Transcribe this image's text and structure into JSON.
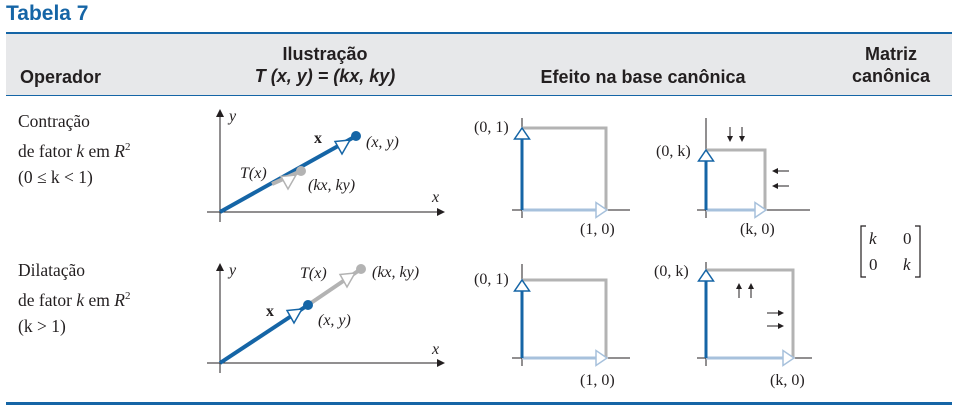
{
  "title": "Tabela 7",
  "header": {
    "operator": "Operador",
    "illustration_line1": "Ilustração",
    "illustration_line2": "T (x, y) = (kx, ky)",
    "effect": "Efeito na base canônica",
    "matrix_line1": "Matriz",
    "matrix_line2": "canônica"
  },
  "rows": [
    {
      "name": "Contração",
      "line2": {
        "pre": "de fator ",
        "k": "k",
        "mid": " em ",
        "R": "R",
        "sup": "2"
      },
      "condition": "(0 ≤ k < 1)",
      "illus": {
        "axis_y": "y",
        "axis_x": "x",
        "vec_label": "x",
        "point_label": "(x, y)",
        "image_label": "T(x)",
        "image_point_label": "(kx, ky)"
      },
      "basis_left": {
        "e2": "(0, 1)",
        "e1": "(1, 0)"
      },
      "basis_right": {
        "e2": "(0, k)",
        "e1": "(k, 0)"
      }
    },
    {
      "name": "Dilatação",
      "line2": {
        "pre": "de fator ",
        "k": "k",
        "mid": " em ",
        "R": "R",
        "sup": "2"
      },
      "condition": "(k > 1)",
      "illus": {
        "axis_y": "y",
        "axis_x": "x",
        "vec_label": "x",
        "point_label": "(x, y)",
        "image_label": "T(x)",
        "image_point_label": "(kx, ky)"
      },
      "basis_left": {
        "e2": "(0, 1)",
        "e1": "(1, 0)"
      },
      "basis_right": {
        "e2": "(0, k)",
        "e1": "(k, 0)"
      }
    }
  ],
  "matrix": {
    "a11": "k",
    "a12": "0",
    "a21": "0",
    "a22": "k"
  },
  "colors": {
    "accent": "#1565a6",
    "grey": "#b3b3b3",
    "header_bg": "#e7e8ea"
  }
}
